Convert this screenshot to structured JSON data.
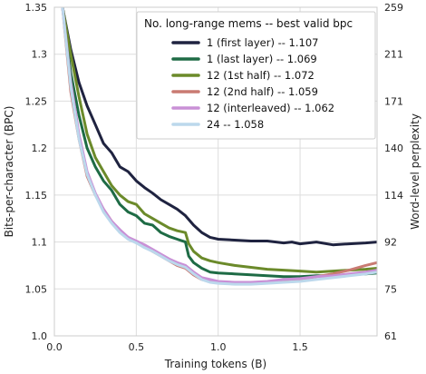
{
  "chart_data": {
    "type": "line",
    "xlabel": "Training tokens (B)",
    "ylabel": "Bits-per-character (BPC)",
    "y2label": "Word-level perplexity",
    "xlim": [
      0,
      1.97
    ],
    "ylim": [
      1.0,
      1.35
    ],
    "xticks": [
      "0.0",
      "0.5",
      "1.0",
      "1.5"
    ],
    "xtick_values": [
      0,
      0.5,
      1.0,
      1.5
    ],
    "yticks": [
      "1.0",
      "1.05",
      "1.1",
      "1.15",
      "1.2",
      "1.25",
      "1.3",
      "1.35"
    ],
    "ytick_values": [
      1.0,
      1.05,
      1.1,
      1.15,
      1.2,
      1.25,
      1.3,
      1.35
    ],
    "y2ticks": [
      "61",
      "75",
      "92",
      "114",
      "140",
      "171",
      "211",
      "259"
    ],
    "grid": true,
    "legend": {
      "title": "No. long-range mems -- best valid bpc",
      "placement": "top-right"
    },
    "series": [
      {
        "name": "1 (first layer) -- 1.107",
        "color": "#1f2340",
        "x": [
          0.05,
          0.1,
          0.15,
          0.2,
          0.25,
          0.3,
          0.35,
          0.4,
          0.45,
          0.5,
          0.55,
          0.6,
          0.65,
          0.7,
          0.75,
          0.8,
          0.85,
          0.9,
          0.95,
          1.0,
          1.1,
          1.2,
          1.3,
          1.4,
          1.45,
          1.5,
          1.6,
          1.7,
          1.8,
          1.9,
          1.97
        ],
        "values": [
          1.35,
          1.305,
          1.27,
          1.245,
          1.225,
          1.205,
          1.195,
          1.18,
          1.175,
          1.165,
          1.158,
          1.152,
          1.145,
          1.14,
          1.135,
          1.128,
          1.118,
          1.11,
          1.105,
          1.103,
          1.102,
          1.101,
          1.101,
          1.099,
          1.1,
          1.098,
          1.1,
          1.097,
          1.098,
          1.099,
          1.1
        ]
      },
      {
        "name": "1 (last layer) -- 1.069",
        "color": "#1e6b45",
        "x": [
          0.05,
          0.1,
          0.15,
          0.2,
          0.25,
          0.3,
          0.35,
          0.4,
          0.45,
          0.5,
          0.55,
          0.6,
          0.65,
          0.7,
          0.75,
          0.8,
          0.82,
          0.85,
          0.9,
          0.95,
          1.0,
          1.1,
          1.2,
          1.3,
          1.4,
          1.5,
          1.6,
          1.7,
          1.8,
          1.9,
          1.97
        ],
        "values": [
          1.35,
          1.28,
          1.235,
          1.2,
          1.18,
          1.165,
          1.155,
          1.14,
          1.132,
          1.128,
          1.12,
          1.118,
          1.11,
          1.106,
          1.103,
          1.1,
          1.085,
          1.078,
          1.072,
          1.068,
          1.067,
          1.066,
          1.065,
          1.064,
          1.063,
          1.063,
          1.064,
          1.064,
          1.065,
          1.066,
          1.067
        ]
      },
      {
        "name": "12 (1st half) -- 1.072",
        "color": "#6b8a2a",
        "x": [
          0.05,
          0.1,
          0.15,
          0.2,
          0.25,
          0.3,
          0.35,
          0.4,
          0.45,
          0.5,
          0.55,
          0.6,
          0.65,
          0.7,
          0.75,
          0.8,
          0.82,
          0.85,
          0.9,
          0.95,
          1.0,
          1.1,
          1.2,
          1.3,
          1.4,
          1.5,
          1.6,
          1.7,
          1.8,
          1.9,
          1.97
        ],
        "values": [
          1.35,
          1.3,
          1.255,
          1.215,
          1.19,
          1.175,
          1.16,
          1.15,
          1.143,
          1.14,
          1.13,
          1.125,
          1.12,
          1.115,
          1.112,
          1.11,
          1.098,
          1.09,
          1.083,
          1.08,
          1.078,
          1.075,
          1.073,
          1.071,
          1.07,
          1.069,
          1.068,
          1.069,
          1.07,
          1.071,
          1.072
        ]
      },
      {
        "name": "12 (2nd half) -- 1.059",
        "color": "#c97a72",
        "x": [
          0.05,
          0.1,
          0.15,
          0.2,
          0.25,
          0.3,
          0.35,
          0.4,
          0.45,
          0.5,
          0.55,
          0.6,
          0.65,
          0.7,
          0.75,
          0.8,
          0.85,
          0.9,
          0.95,
          1.0,
          1.1,
          1.2,
          1.3,
          1.4,
          1.5,
          1.6,
          1.7,
          1.8,
          1.9,
          1.97
        ],
        "values": [
          1.35,
          1.26,
          1.21,
          1.17,
          1.15,
          1.135,
          1.122,
          1.112,
          1.105,
          1.1,
          1.095,
          1.09,
          1.085,
          1.08,
          1.075,
          1.072,
          1.065,
          1.06,
          1.058,
          1.057,
          1.056,
          1.056,
          1.057,
          1.058,
          1.06,
          1.063,
          1.066,
          1.07,
          1.075,
          1.078
        ]
      },
      {
        "name": "12 (interleaved) -- 1.062",
        "color": "#c990d6",
        "x": [
          0.05,
          0.1,
          0.15,
          0.2,
          0.25,
          0.3,
          0.35,
          0.4,
          0.45,
          0.5,
          0.55,
          0.6,
          0.65,
          0.7,
          0.75,
          0.8,
          0.85,
          0.9,
          0.95,
          1.0,
          1.1,
          1.2,
          1.3,
          1.4,
          1.5,
          1.6,
          1.7,
          1.8,
          1.9,
          1.97
        ],
        "values": [
          1.35,
          1.27,
          1.215,
          1.175,
          1.152,
          1.135,
          1.122,
          1.113,
          1.105,
          1.101,
          1.097,
          1.092,
          1.087,
          1.082,
          1.078,
          1.075,
          1.068,
          1.062,
          1.06,
          1.058,
          1.057,
          1.057,
          1.058,
          1.06,
          1.061,
          1.063,
          1.064,
          1.066,
          1.068,
          1.07
        ]
      },
      {
        "name": "24 -- 1.058",
        "color": "#bcd8ec",
        "x": [
          0.05,
          0.1,
          0.15,
          0.2,
          0.25,
          0.3,
          0.35,
          0.4,
          0.45,
          0.5,
          0.55,
          0.6,
          0.65,
          0.7,
          0.75,
          0.8,
          0.85,
          0.9,
          0.95,
          1.0,
          1.1,
          1.2,
          1.3,
          1.4,
          1.5,
          1.6,
          1.7,
          1.8,
          1.9,
          1.97
        ],
        "values": [
          1.35,
          1.265,
          1.21,
          1.172,
          1.15,
          1.132,
          1.12,
          1.11,
          1.103,
          1.099,
          1.094,
          1.09,
          1.085,
          1.08,
          1.076,
          1.073,
          1.066,
          1.06,
          1.057,
          1.056,
          1.055,
          1.055,
          1.056,
          1.057,
          1.058,
          1.06,
          1.062,
          1.064,
          1.066,
          1.068
        ]
      }
    ]
  }
}
